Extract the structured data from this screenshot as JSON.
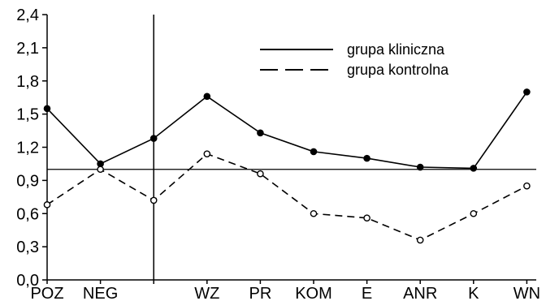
{
  "chart_data": {
    "type": "line",
    "title": "",
    "xlabel": "",
    "ylabel": "",
    "categories": [
      "POZ",
      "NEG",
      "",
      "WZ",
      "PR",
      "KOM",
      "E",
      "ANR",
      "K",
      "WN"
    ],
    "ylim": [
      0.0,
      2.4
    ],
    "yticks": [
      "0,0",
      "0,3",
      "0,6",
      "0,9",
      "1,2",
      "1,5",
      "1,8",
      "2,1",
      "2,4"
    ],
    "reference_line": 1.0,
    "legend_position": "top-right",
    "series": [
      {
        "name": "grupa kliniczna",
        "style": "solid",
        "marker": "filled",
        "values": [
          1.55,
          1.05,
          1.28,
          1.66,
          1.33,
          1.16,
          1.1,
          1.02,
          1.01,
          1.7
        ]
      },
      {
        "name": "grupa kontrolna",
        "style": "dashed",
        "marker": "open",
        "values": [
          0.68,
          1.0,
          0.72,
          1.14,
          0.96,
          0.6,
          0.56,
          0.36,
          0.6,
          0.85
        ]
      }
    ],
    "colors": {
      "line": "#000000",
      "background": "#ffffff"
    }
  }
}
